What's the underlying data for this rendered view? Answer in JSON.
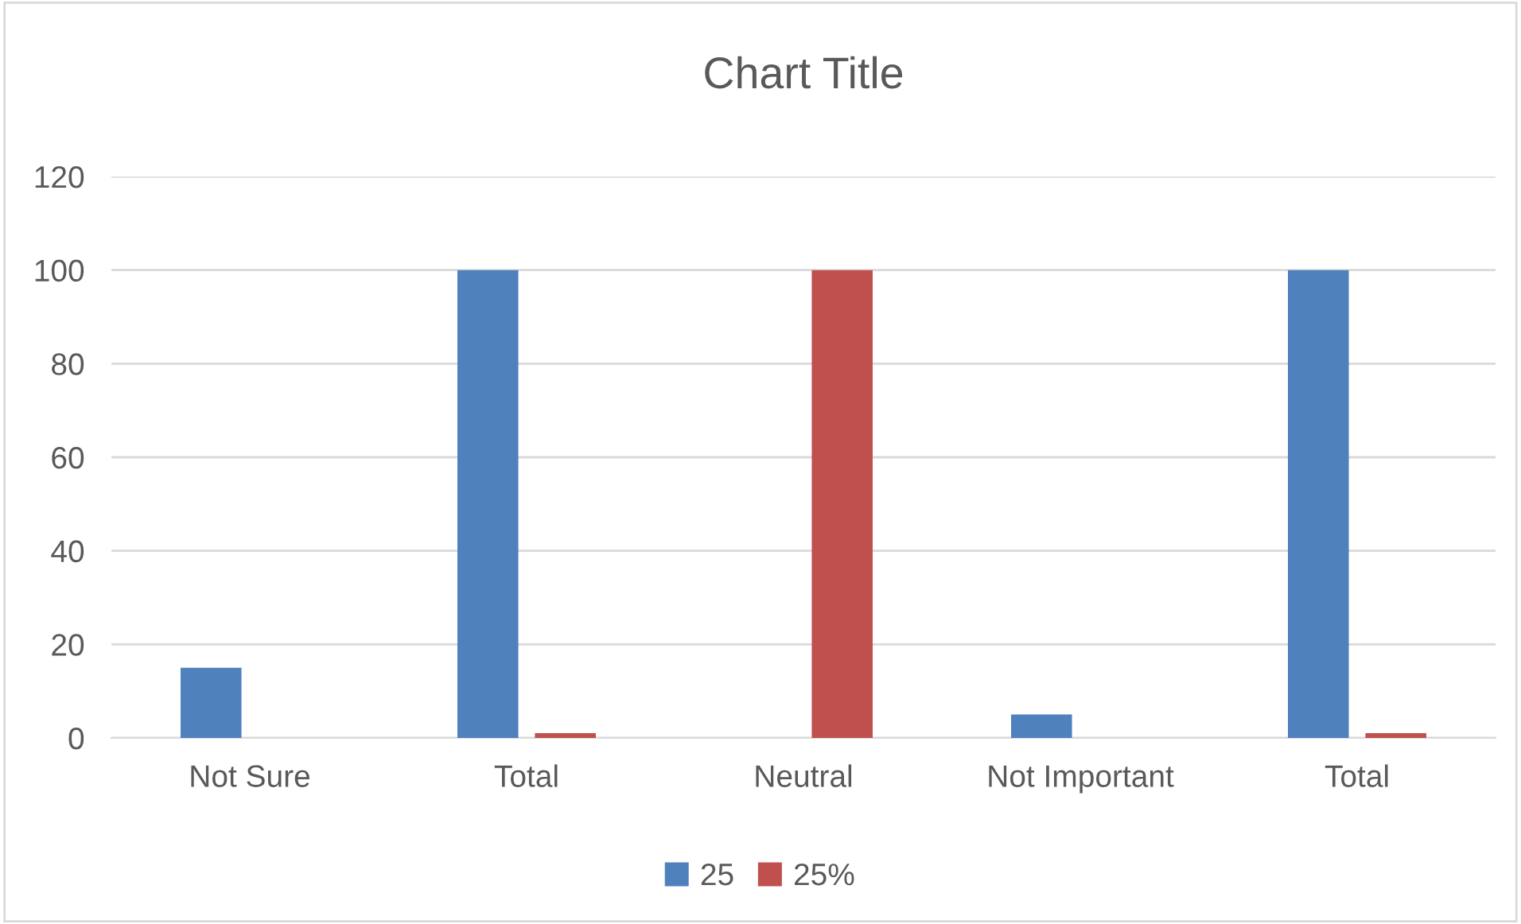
{
  "chart_data": {
    "type": "bar",
    "title": "Chart Title",
    "categories": [
      "Not Sure",
      "Total",
      "Neutral",
      "Not Important",
      "Total"
    ],
    "series": [
      {
        "name": "25",
        "color": "#4f81bd",
        "values": [
          15,
          100,
          0,
          5,
          100
        ]
      },
      {
        "name": "25%",
        "color": "#c0504d",
        "values": [
          0,
          1,
          100,
          0,
          1
        ]
      }
    ],
    "ylim": [
      0,
      120
    ],
    "yticks": [
      0,
      20,
      40,
      60,
      80,
      100,
      120
    ],
    "grid": "y",
    "legend": "bottom"
  }
}
